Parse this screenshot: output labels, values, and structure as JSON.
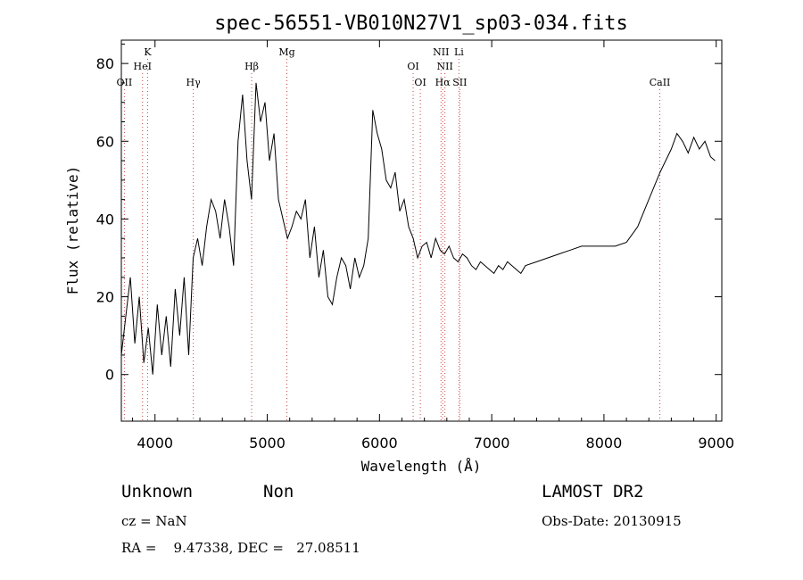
{
  "chart_data": {
    "type": "line",
    "title": "spec-56551-VB010N27V1_sp03-034.fits",
    "xlabel": "Wavelength (Å)",
    "ylabel": "Flux (relative)",
    "xlim": [
      3700,
      9050
    ],
    "ylim": [
      -12,
      86
    ],
    "x_ticks": [
      4000,
      5000,
      6000,
      7000,
      8000,
      9000
    ],
    "y_ticks": [
      0,
      20,
      40,
      60,
      80
    ],
    "grid": false,
    "spectral_lines": [
      {
        "label": "OII",
        "wavelength": 3727,
        "row": 3
      },
      {
        "label": "K",
        "wavelength": 3934,
        "row": 1
      },
      {
        "label": "HeI",
        "wavelength": 3889,
        "row": 2
      },
      {
        "label": "Hγ",
        "wavelength": 4341,
        "row": 3
      },
      {
        "label": "Hβ",
        "wavelength": 4861,
        "row": 2
      },
      {
        "label": "Mg",
        "wavelength": 5175,
        "row": 1
      },
      {
        "label": "OI",
        "wavelength": 6300,
        "row": 2
      },
      {
        "label": "OI",
        "wavelength": 6364,
        "row": 3
      },
      {
        "label": "NII",
        "wavelength": 6548,
        "row": 1
      },
      {
        "label": "NII",
        "wavelength": 6583,
        "row": 2
      },
      {
        "label": "Hα",
        "wavelength": 6563,
        "row": 3
      },
      {
        "label": "Li",
        "wavelength": 6708,
        "row": 1
      },
      {
        "label": "SII",
        "wavelength": 6716,
        "row": 3
      },
      {
        "label": "CaII",
        "wavelength": 8498,
        "row": 3
      }
    ],
    "series": [
      {
        "x": [
          3700,
          3740,
          3780,
          3820,
          3860,
          3900,
          3940,
          3980,
          4020,
          4060,
          4100,
          4140,
          4180,
          4220,
          4260,
          4300,
          4340,
          4380,
          4420,
          4460,
          4500,
          4540,
          4580,
          4620,
          4660,
          4700,
          4740,
          4780,
          4820,
          4860,
          4900,
          4940,
          4980,
          5020,
          5060,
          5100,
          5140,
          5180,
          5220,
          5260,
          5300,
          5340,
          5380,
          5420,
          5460,
          5500,
          5540,
          5580,
          5620,
          5660,
          5700,
          5740,
          5780,
          5820,
          5860,
          5900,
          5940,
          5980,
          6020,
          6060,
          6100,
          6140,
          6180,
          6220,
          6260,
          6300,
          6340,
          6380,
          6420,
          6460,
          6500,
          6540,
          6580,
          6620,
          6660,
          6700,
          6740,
          6780,
          6820,
          6860,
          6900,
          6940,
          6980,
          7020,
          7060,
          7100,
          7140,
          7180,
          7220,
          7260,
          7300,
          7400,
          7500,
          7600,
          7700,
          7800,
          7900,
          8000,
          8100,
          8200,
          8300,
          8400,
          8500,
          8600,
          8650,
          8700,
          8750,
          8800,
          8850,
          8900,
          8950,
          8990
        ],
        "y": [
          5,
          15,
          25,
          8,
          20,
          3,
          12,
          0,
          18,
          5,
          15,
          2,
          22,
          10,
          25,
          5,
          30,
          35,
          28,
          38,
          45,
          42,
          35,
          45,
          38,
          28,
          60,
          72,
          55,
          45,
          75,
          65,
          70,
          55,
          62,
          45,
          40,
          35,
          38,
          42,
          40,
          45,
          30,
          38,
          25,
          32,
          20,
          18,
          25,
          30,
          28,
          22,
          30,
          25,
          28,
          35,
          68,
          62,
          58,
          50,
          48,
          52,
          42,
          45,
          38,
          35,
          30,
          33,
          34,
          30,
          35,
          32,
          31,
          33,
          30,
          29,
          31,
          30,
          28,
          27,
          29,
          28,
          27,
          26,
          28,
          27,
          29,
          28,
          27,
          26,
          28,
          29,
          30,
          31,
          32,
          33,
          33,
          33,
          33,
          34,
          38,
          45,
          52,
          58,
          62,
          60,
          57,
          61,
          58,
          60,
          56,
          55
        ]
      }
    ]
  },
  "info": {
    "object_class": "Unknown",
    "object_subclass": "Non",
    "cz": "cz = NaN",
    "coords": "RA =    9.47338, DEC =   27.08511",
    "survey": "LAMOST DR2",
    "obs_date": "Obs-Date: 20130915"
  }
}
